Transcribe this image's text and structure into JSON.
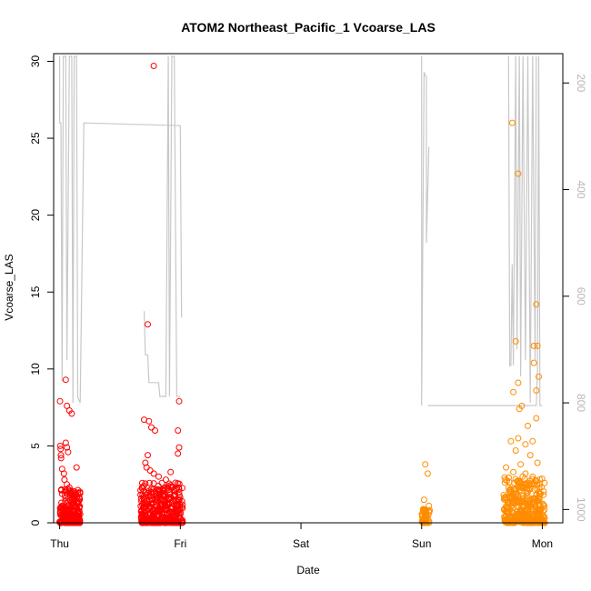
{
  "chart_data": {
    "type": "scatter",
    "title": "ATOM2 Northeast_Pacific_1 Vcoarse_LAS",
    "xlabel": "Date",
    "ylabel": "Vcoarse_LAS",
    "x_ticks": [
      "Thu",
      "Fri",
      "Sat",
      "Sun",
      "Mon"
    ],
    "xlim_days": [
      -0.05,
      4.17
    ],
    "ylim": [
      0,
      30.5
    ],
    "y_ticks": [
      0,
      5,
      10,
      15,
      20,
      25,
      30
    ],
    "y2_ticks": [
      200,
      400,
      600,
      800,
      1000
    ],
    "y2lim": [
      1025,
      145
    ],
    "y2_reversed": true,
    "grid": false,
    "legend": "none",
    "colors": {
      "series_red": "#ff0000",
      "series_orange": "#ff8c00",
      "altitude_line": "#c8c8c8",
      "axis": "#000000"
    },
    "series": [
      {
        "color": "red",
        "points": [
          [
            0.003,
            7.9
          ],
          [
            0.05,
            9.3
          ],
          [
            0.06,
            7.6
          ],
          [
            0.08,
            7.3
          ],
          [
            0.1,
            7.1
          ],
          [
            0.005,
            5.0
          ],
          [
            0.008,
            4.8
          ],
          [
            0.01,
            4.4
          ],
          [
            0.012,
            4.2
          ],
          [
            0.05,
            5.2
          ],
          [
            0.06,
            4.9
          ],
          [
            0.07,
            4.6
          ],
          [
            0.14,
            3.6
          ],
          [
            0.02,
            3.5
          ],
          [
            0.035,
            3.2
          ],
          [
            0.04,
            2.8
          ],
          [
            0.06,
            2.5
          ],
          [
            0.08,
            2.3
          ],
          [
            0.1,
            2.0
          ],
          [
            0.13,
            1.8
          ],
          [
            0.16,
            1.4
          ],
          [
            0.73,
            12.9
          ],
          [
            0.78,
            29.7
          ],
          [
            0.7,
            6.7
          ],
          [
            0.74,
            6.6
          ],
          [
            0.76,
            6.2
          ],
          [
            0.79,
            6.0
          ],
          [
            0.99,
            7.9
          ],
          [
            0.98,
            6.0
          ],
          [
            0.99,
            4.9
          ],
          [
            0.98,
            4.5
          ],
          [
            0.73,
            4.4
          ],
          [
            0.71,
            3.9
          ],
          [
            0.72,
            3.6
          ],
          [
            0.75,
            3.4
          ],
          [
            0.78,
            3.2
          ],
          [
            0.82,
            3.0
          ],
          [
            0.88,
            2.8
          ],
          [
            0.92,
            3.3
          ],
          [
            0.96,
            2.6
          ],
          [
            0.99,
            2.2
          ],
          [
            0.83,
            2.0
          ],
          [
            0.86,
            1.8
          ],
          [
            0.9,
            1.6
          ],
          [
            0.95,
            1.5
          ]
        ]
      },
      {
        "color": "orange",
        "points": [
          [
            3.03,
            3.8
          ],
          [
            3.05,
            3.2
          ],
          [
            3.02,
            1.5
          ],
          [
            3.06,
            1.1
          ],
          [
            3.04,
            0.8
          ],
          [
            3.75,
            26.0
          ],
          [
            3.8,
            22.7
          ],
          [
            3.95,
            14.2
          ],
          [
            3.93,
            11.5
          ],
          [
            3.78,
            11.8
          ],
          [
            3.96,
            11.5
          ],
          [
            3.93,
            10.4
          ],
          [
            3.97,
            9.5
          ],
          [
            3.8,
            9.1
          ],
          [
            3.76,
            8.5
          ],
          [
            3.95,
            8.6
          ],
          [
            3.83,
            7.6
          ],
          [
            3.81,
            7.4
          ],
          [
            3.95,
            6.8
          ],
          [
            3.88,
            6.3
          ],
          [
            3.8,
            5.5
          ],
          [
            3.92,
            5.3
          ],
          [
            3.86,
            5.1
          ],
          [
            3.74,
            5.3
          ],
          [
            3.78,
            4.7
          ],
          [
            3.9,
            4.4
          ],
          [
            3.96,
            3.9
          ],
          [
            3.82,
            3.8
          ],
          [
            3.7,
            3.6
          ],
          [
            3.76,
            3.3
          ],
          [
            3.86,
            3.2
          ],
          [
            3.92,
            3.0
          ],
          [
            3.79,
            2.7
          ],
          [
            3.84,
            2.4
          ],
          [
            3.9,
            2.2
          ],
          [
            3.74,
            2.0
          ],
          [
            3.98,
            2.5
          ],
          [
            3.68,
            1.8
          ]
        ]
      }
    ],
    "dense_clusters": [
      {
        "color": "red",
        "x0": 0.0,
        "x1": 0.17,
        "ymax": 2.2,
        "count": 260,
        "seed": 11
      },
      {
        "color": "red",
        "x0": 0.67,
        "x1": 1.02,
        "ymax": 2.6,
        "count": 360,
        "seed": 23
      },
      {
        "color": "orange",
        "x0": 3.0,
        "x1": 3.08,
        "ymax": 0.9,
        "count": 45,
        "seed": 37
      },
      {
        "color": "orange",
        "x0": 3.68,
        "x1": 4.02,
        "ymax": 3.0,
        "count": 420,
        "seed": 53
      }
    ],
    "altitude_line": [
      [
        [
          0.0,
          150
        ],
        [
          0.0,
          275
        ],
        [
          0.01,
          275
        ],
        [
          0.02,
          760
        ],
        [
          0.03,
          150
        ],
        [
          0.05,
          150
        ],
        [
          0.06,
          720
        ],
        [
          0.08,
          150
        ],
        [
          0.1,
          150
        ],
        [
          0.11,
          800
        ],
        [
          0.12,
          150
        ],
        [
          0.14,
          150
        ],
        [
          0.15,
          790
        ],
        [
          0.17,
          800
        ],
        [
          0.2,
          275
        ],
        [
          1.0,
          280
        ],
        [
          1.01,
          640
        ]
      ],
      [
        [
          0.7,
          628
        ],
        [
          0.71,
          710
        ],
        [
          0.73,
          710
        ],
        [
          0.74,
          762
        ],
        [
          0.82,
          762
        ],
        [
          0.83,
          788
        ],
        [
          0.88,
          788
        ],
        [
          0.9,
          150
        ],
        [
          0.91,
          788
        ],
        [
          0.93,
          150
        ],
        [
          0.95,
          150
        ],
        [
          0.97,
          788
        ],
        [
          1.0,
          788
        ]
      ],
      [
        [
          3.0,
          150
        ],
        [
          3.0,
          805
        ],
        [
          3.02,
          180
        ],
        [
          3.04,
          190
        ],
        [
          3.04,
          500
        ],
        [
          3.06,
          320
        ]
      ],
      [
        [
          3.05,
          805
        ],
        [
          3.95,
          805
        ],
        [
          3.96,
          740
        ],
        [
          3.97,
          150
        ],
        [
          3.98,
          805
        ],
        [
          4.0,
          805
        ]
      ],
      [
        [
          3.72,
          150
        ],
        [
          3.73,
          730
        ],
        [
          3.74,
          730
        ],
        [
          3.75,
          540
        ],
        [
          3.76,
          730
        ],
        [
          3.78,
          150
        ],
        [
          3.79,
          700
        ],
        [
          3.81,
          150
        ],
        [
          3.82,
          750
        ],
        [
          3.84,
          150
        ],
        [
          3.86,
          720
        ],
        [
          3.88,
          150
        ],
        [
          3.9,
          800
        ],
        [
          3.92,
          150
        ],
        [
          3.94,
          720
        ],
        [
          3.95,
          150
        ]
      ]
    ]
  }
}
